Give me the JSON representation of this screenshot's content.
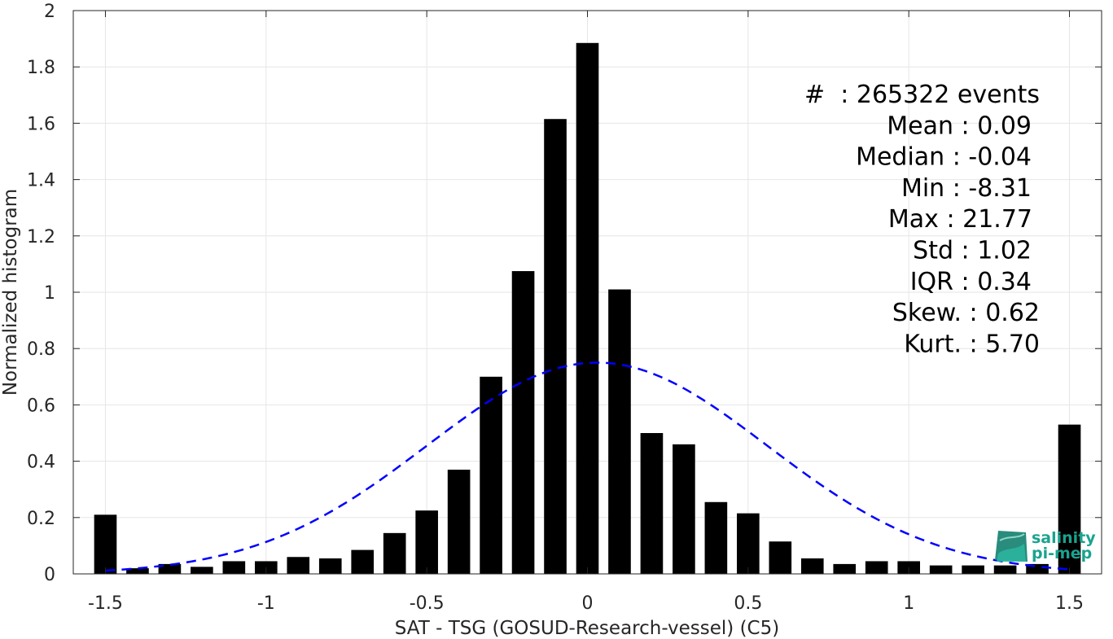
{
  "chart_data": {
    "type": "bar",
    "xlabel": "SAT - TSG (GOSUD-Research-vessel) (C5)",
    "ylabel": "Normalized histogram",
    "xlim": [
      -1.6,
      1.6
    ],
    "ylim": [
      0,
      2
    ],
    "xticks": [
      -1.5,
      -1,
      -0.5,
      0,
      0.5,
      1,
      1.5
    ],
    "xtick_labels": [
      "-1.5",
      "-1",
      "-0.5",
      "0",
      "0.5",
      "1",
      "1.5"
    ],
    "yticks": [
      0,
      0.2,
      0.4,
      0.6,
      0.8,
      1,
      1.2,
      1.4,
      1.6,
      1.8,
      2
    ],
    "ytick_labels": [
      "0",
      "0.2",
      "0.4",
      "0.6",
      "0.8",
      "1",
      "1.2",
      "1.4",
      "1.6",
      "1.8",
      "2"
    ],
    "grid": true,
    "bar_color": "#000000",
    "x": [
      -1.5,
      -1.4,
      -1.3,
      -1.2,
      -1.1,
      -1.0,
      -0.9,
      -0.8,
      -0.7,
      -0.6,
      -0.5,
      -0.4,
      -0.3,
      -0.2,
      -0.1,
      0.0,
      0.1,
      0.2,
      0.3,
      0.4,
      0.5,
      0.6,
      0.7,
      0.8,
      0.9,
      1.0,
      1.1,
      1.2,
      1.3,
      1.4,
      1.5
    ],
    "values": [
      0.21,
      0.02,
      0.035,
      0.025,
      0.045,
      0.045,
      0.06,
      0.055,
      0.085,
      0.145,
      0.225,
      0.37,
      0.7,
      1.075,
      1.615,
      1.885,
      1.01,
      0.5,
      0.46,
      0.255,
      0.215,
      0.115,
      0.055,
      0.035,
      0.045,
      0.045,
      0.03,
      0.03,
      0.03,
      0.035,
      0.53
    ],
    "fit_curve": {
      "type": "gaussian",
      "mean": 0.03,
      "std": 0.53,
      "peak": 0.75,
      "range": [
        -1.5,
        1.5
      ],
      "color": "#0000ff",
      "style": "dashed"
    },
    "stats": [
      {
        "label": "#  : 265322 events"
      },
      {
        "label": "Mean : 0.09"
      },
      {
        "label": "Median : -0.04"
      },
      {
        "label": "Min : -8.31"
      },
      {
        "label": "Max : 21.77"
      },
      {
        "label": "Std : 1.02"
      },
      {
        "label": "IQR : 0.34"
      },
      {
        "label": "Skew. : 0.62"
      },
      {
        "label": "Kurt. : 5.70"
      }
    ]
  },
  "logo": {
    "line1": "salinity",
    "line2": "pi-mep",
    "color": "#1aa38f"
  }
}
